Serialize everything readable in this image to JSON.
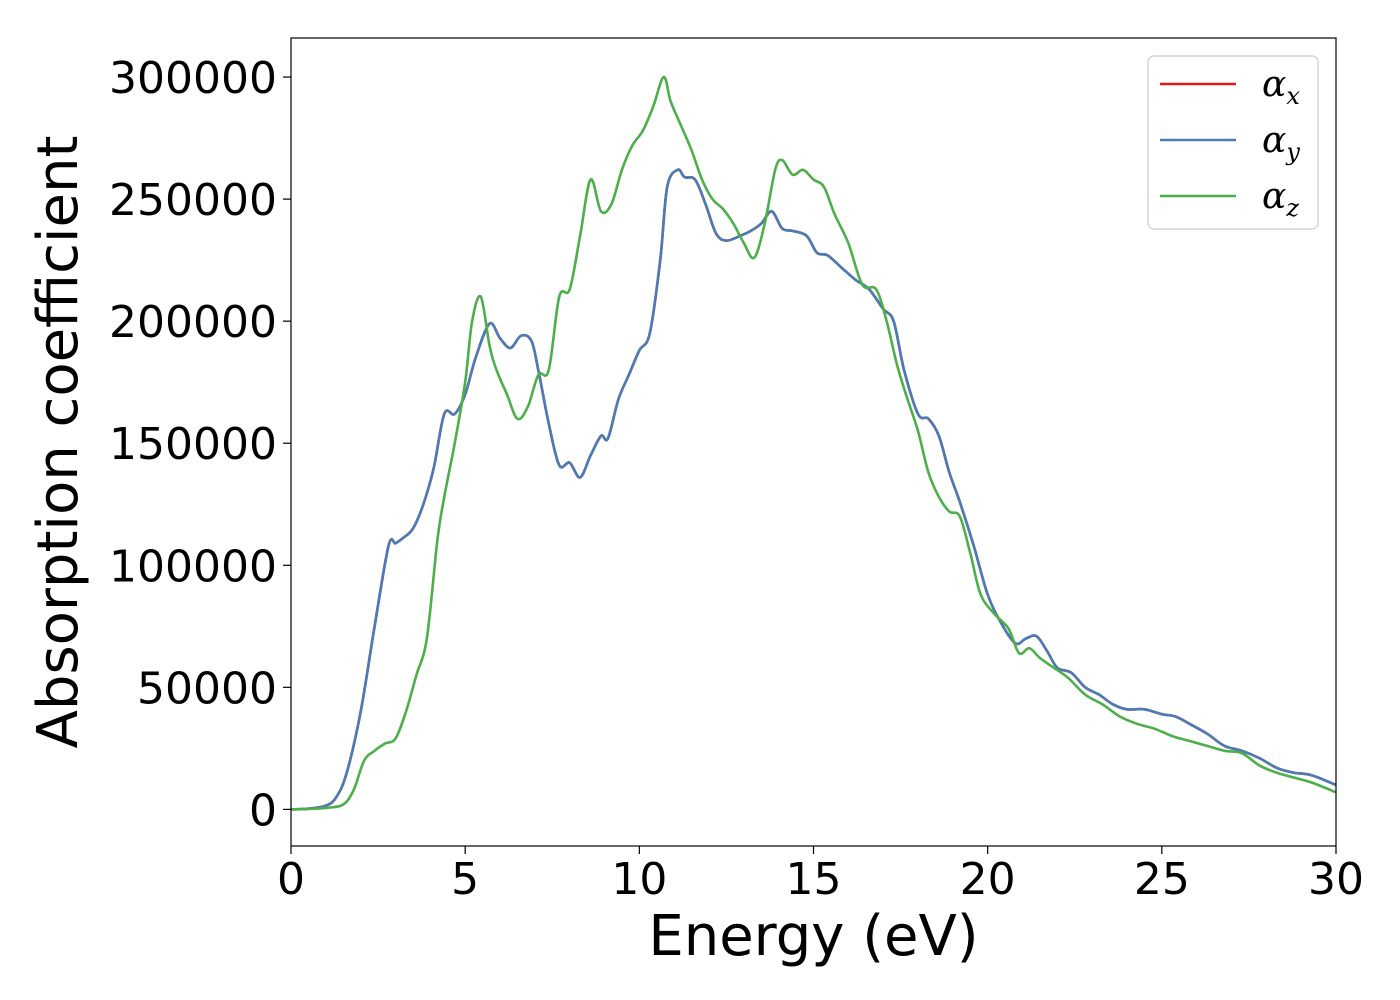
{
  "chart_data": {
    "type": "line",
    "xlabel": "Energy (eV)",
    "ylabel": "Absorption coefficient",
    "xlim": [
      0,
      30
    ],
    "ylim": [
      -15000,
      316000
    ],
    "xticks": [
      0,
      5,
      10,
      15,
      20,
      25,
      30
    ],
    "xtick_labels": [
      "0",
      "5",
      "10",
      "15",
      "20",
      "25",
      "30"
    ],
    "yticks": [
      0,
      50000,
      100000,
      150000,
      200000,
      250000,
      300000
    ],
    "ytick_labels": [
      "0",
      "50000",
      "100000",
      "150000",
      "200000",
      "250000",
      "300000"
    ],
    "grid": false,
    "legend_position": "top-right",
    "series": [
      {
        "name": "α_x",
        "legend_symbol": "α",
        "legend_subscript": "x",
        "color": "#e41a1c",
        "x": [
          0,
          0.5,
          1.0,
          1.3,
          1.6,
          2.0,
          2.4,
          2.8,
          3.0,
          3.2,
          3.5,
          3.8,
          4.1,
          4.4,
          4.7,
          5.0,
          5.3,
          5.7,
          6.0,
          6.3,
          6.6,
          6.9,
          7.1,
          7.4,
          7.7,
          8.0,
          8.3,
          8.6,
          8.9,
          9.1,
          9.4,
          9.7,
          10.0,
          10.3,
          10.6,
          10.8,
          11.1,
          11.3,
          11.6,
          11.9,
          12.2,
          12.5,
          12.9,
          13.2,
          13.5,
          13.8,
          14.1,
          14.4,
          14.8,
          15.1,
          15.4,
          15.8,
          16.2,
          16.6,
          17.0,
          17.3,
          17.6,
          18.0,
          18.3,
          18.6,
          18.9,
          19.2,
          19.6,
          20.0,
          20.4,
          20.8,
          21.1,
          21.4,
          21.7,
          22.0,
          22.4,
          22.8,
          23.2,
          23.6,
          24.0,
          24.5,
          25.0,
          25.4,
          25.8,
          26.3,
          26.8,
          27.3,
          27.8,
          28.3,
          28.8,
          29.3,
          30.0
        ],
        "y": [
          0,
          300,
          1500,
          5000,
          15000,
          40000,
          75000,
          108000,
          109000,
          111000,
          115000,
          125000,
          140000,
          162000,
          162000,
          170000,
          185000,
          199000,
          193000,
          189000,
          194000,
          192000,
          180000,
          158000,
          141000,
          142000,
          136000,
          145000,
          153000,
          152000,
          168000,
          178000,
          188000,
          195000,
          225000,
          255000,
          262000,
          259000,
          258000,
          248000,
          236000,
          233000,
          235000,
          237000,
          240000,
          245000,
          238000,
          237000,
          235000,
          228000,
          227000,
          222000,
          217000,
          213000,
          205000,
          200000,
          180000,
          162000,
          160000,
          153000,
          138000,
          126000,
          108000,
          88000,
          76000,
          68000,
          70000,
          71000,
          65000,
          58000,
          56000,
          50000,
          47000,
          43000,
          41000,
          41000,
          39000,
          38000,
          35000,
          31000,
          26000,
          24000,
          21000,
          17000,
          15000,
          14000,
          10000
        ]
      },
      {
        "name": "α_y",
        "legend_symbol": "α",
        "legend_subscript": "y",
        "color": "#4a7cb5",
        "x": [
          0,
          0.5,
          1.0,
          1.3,
          1.6,
          2.0,
          2.4,
          2.8,
          3.0,
          3.2,
          3.5,
          3.8,
          4.1,
          4.4,
          4.7,
          5.0,
          5.3,
          5.7,
          6.0,
          6.3,
          6.6,
          6.9,
          7.1,
          7.4,
          7.7,
          8.0,
          8.3,
          8.6,
          8.9,
          9.1,
          9.4,
          9.7,
          10.0,
          10.3,
          10.6,
          10.8,
          11.1,
          11.3,
          11.6,
          11.9,
          12.2,
          12.5,
          12.9,
          13.2,
          13.5,
          13.8,
          14.1,
          14.4,
          14.8,
          15.1,
          15.4,
          15.8,
          16.2,
          16.6,
          17.0,
          17.3,
          17.6,
          18.0,
          18.3,
          18.6,
          18.9,
          19.2,
          19.6,
          20.0,
          20.4,
          20.8,
          21.1,
          21.4,
          21.7,
          22.0,
          22.4,
          22.8,
          23.2,
          23.6,
          24.0,
          24.5,
          25.0,
          25.4,
          25.8,
          26.3,
          26.8,
          27.3,
          27.8,
          28.3,
          28.8,
          29.3,
          30.0
        ],
        "y": [
          0,
          300,
          1500,
          5000,
          15000,
          40000,
          75000,
          108000,
          109000,
          111000,
          115000,
          125000,
          140000,
          162000,
          162000,
          170000,
          185000,
          199000,
          193000,
          189000,
          194000,
          192000,
          180000,
          158000,
          141000,
          142000,
          136000,
          145000,
          153000,
          152000,
          168000,
          178000,
          188000,
          195000,
          225000,
          255000,
          262000,
          259000,
          258000,
          248000,
          236000,
          233000,
          235000,
          237000,
          240000,
          245000,
          238000,
          237000,
          235000,
          228000,
          227000,
          222000,
          217000,
          213000,
          205000,
          200000,
          180000,
          162000,
          160000,
          153000,
          138000,
          126000,
          108000,
          88000,
          76000,
          68000,
          70000,
          71000,
          65000,
          58000,
          56000,
          50000,
          47000,
          43000,
          41000,
          41000,
          39000,
          38000,
          35000,
          31000,
          26000,
          24000,
          21000,
          17000,
          15000,
          14000,
          10000
        ]
      },
      {
        "name": "α_z",
        "legend_symbol": "α",
        "legend_subscript": "z",
        "color": "#4daf4a",
        "x": [
          0,
          0.5,
          1.0,
          1.5,
          1.8,
          2.1,
          2.4,
          2.7,
          3.0,
          3.3,
          3.6,
          3.9,
          4.2,
          4.4,
          4.7,
          5.0,
          5.2,
          5.45,
          5.7,
          5.9,
          6.2,
          6.5,
          6.8,
          7.1,
          7.4,
          7.7,
          8.0,
          8.3,
          8.6,
          8.9,
          9.2,
          9.5,
          9.8,
          10.1,
          10.4,
          10.7,
          10.9,
          11.2,
          11.5,
          11.8,
          12.1,
          12.4,
          12.7,
          13.0,
          13.3,
          13.6,
          13.9,
          14.1,
          14.4,
          14.7,
          15.0,
          15.3,
          15.6,
          16.0,
          16.4,
          16.8,
          17.1,
          17.4,
          17.7,
          18.0,
          18.3,
          18.6,
          18.9,
          19.2,
          19.5,
          19.8,
          20.2,
          20.6,
          20.9,
          21.2,
          21.5,
          21.9,
          22.3,
          22.8,
          23.3,
          23.8,
          24.3,
          24.8,
          25.3,
          25.8,
          26.3,
          26.8,
          27.3,
          27.8,
          28.3,
          28.8,
          29.3,
          30.0
        ],
        "y": [
          0,
          200,
          600,
          2000,
          8000,
          20000,
          24000,
          27000,
          29000,
          40000,
          55000,
          70000,
          110000,
          128000,
          150000,
          175000,
          200000,
          210000,
          190000,
          180000,
          170000,
          160000,
          165000,
          178000,
          180000,
          210000,
          213000,
          235000,
          258000,
          245000,
          248000,
          262000,
          272000,
          278000,
          288000,
          300000,
          290000,
          280000,
          270000,
          258000,
          250000,
          246000,
          240000,
          232000,
          226000,
          240000,
          262000,
          266000,
          260000,
          262000,
          258000,
          255000,
          244000,
          232000,
          215000,
          213000,
          200000,
          182000,
          168000,
          155000,
          138000,
          128000,
          122000,
          120000,
          105000,
          88000,
          80000,
          74000,
          64000,
          66000,
          62000,
          58000,
          54000,
          47000,
          43000,
          38000,
          35000,
          33000,
          30000,
          28000,
          26000,
          24000,
          23000,
          18000,
          15000,
          13000,
          11000,
          7000
        ]
      }
    ]
  }
}
